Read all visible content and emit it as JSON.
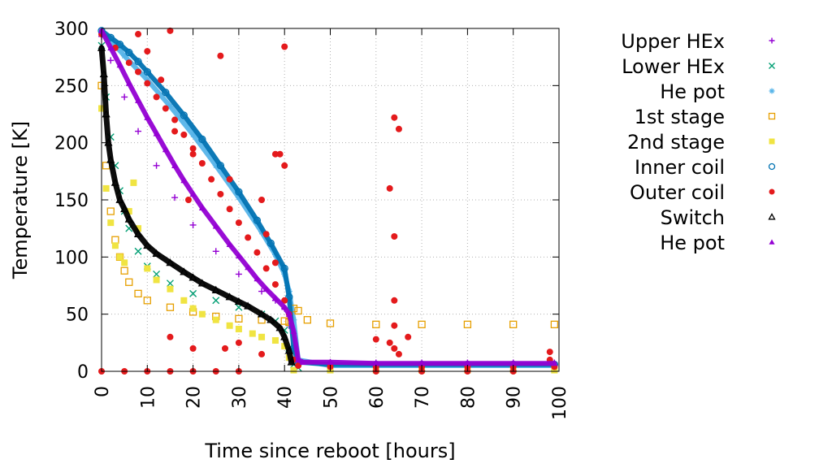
{
  "chart_data": {
    "type": "scatter",
    "title": "",
    "xlabel": "Time since reboot [hours]",
    "ylabel": "Temperature [K]",
    "xlim": [
      0,
      100
    ],
    "ylim": [
      0,
      300
    ],
    "x_ticks": [
      0,
      10,
      20,
      30,
      40,
      50,
      60,
      70,
      80,
      90,
      100
    ],
    "y_ticks": [
      0,
      50,
      100,
      150,
      200,
      250,
      300
    ],
    "grid": true,
    "legend_position": "outside-right",
    "series": [
      {
        "name": "Upper HEx",
        "marker": "plus",
        "color": "#9400d3",
        "points": [
          [
            0,
            293
          ],
          [
            2,
            272
          ],
          [
            5,
            240
          ],
          [
            8,
            210
          ],
          [
            12,
            180
          ],
          [
            16,
            152
          ],
          [
            20,
            128
          ],
          [
            25,
            105
          ],
          [
            30,
            85
          ],
          [
            35,
            70
          ],
          [
            38,
            62
          ],
          [
            40,
            55
          ],
          [
            41,
            40
          ],
          [
            42,
            20
          ],
          [
            43,
            8
          ],
          [
            50,
            8
          ],
          [
            60,
            7.5
          ],
          [
            70,
            7.5
          ],
          [
            80,
            7.5
          ],
          [
            90,
            7.5
          ],
          [
            99,
            7.5
          ]
        ]
      },
      {
        "name": "Lower HEx",
        "marker": "cross",
        "color": "#009e73",
        "points": [
          [
            0,
            285
          ],
          [
            1,
            240
          ],
          [
            2,
            205
          ],
          [
            3,
            180
          ],
          [
            4,
            158
          ],
          [
            5,
            140
          ],
          [
            6,
            125
          ],
          [
            8,
            105
          ],
          [
            10,
            92
          ],
          [
            12,
            85
          ],
          [
            15,
            77
          ],
          [
            20,
            68
          ],
          [
            25,
            62
          ],
          [
            30,
            56
          ],
          [
            35,
            50
          ],
          [
            38,
            44
          ],
          [
            40,
            36
          ],
          [
            41,
            20
          ],
          [
            42,
            6
          ],
          [
            43,
            3
          ],
          [
            50,
            3
          ],
          [
            60,
            3
          ],
          [
            70,
            3
          ],
          [
            80,
            3
          ],
          [
            90,
            3
          ],
          [
            99,
            3
          ]
        ]
      },
      {
        "name": "He pot",
        "marker": "asterisk",
        "color": "#56b4e9",
        "points": [
          [
            0,
            296
          ],
          [
            3,
            285
          ],
          [
            5,
            276
          ],
          [
            10,
            255
          ],
          [
            15,
            232
          ],
          [
            20,
            207
          ],
          [
            25,
            180
          ],
          [
            30,
            152
          ],
          [
            35,
            122
          ],
          [
            38,
            102
          ],
          [
            40,
            85
          ],
          [
            41,
            70
          ],
          [
            42,
            45
          ],
          [
            43,
            10
          ],
          [
            50,
            5
          ],
          [
            60,
            5
          ],
          [
            70,
            5
          ],
          [
            80,
            5
          ],
          [
            90,
            5
          ],
          [
            99,
            5
          ]
        ]
      },
      {
        "name": "1st stage",
        "marker": "open-square",
        "color": "#e69f00",
        "points": [
          [
            0,
            250
          ],
          [
            1,
            180
          ],
          [
            2,
            140
          ],
          [
            3,
            115
          ],
          [
            4,
            100
          ],
          [
            5,
            88
          ],
          [
            6,
            78
          ],
          [
            8,
            68
          ],
          [
            10,
            62
          ],
          [
            15,
            56
          ],
          [
            20,
            52
          ],
          [
            25,
            48
          ],
          [
            30,
            46
          ],
          [
            35,
            45
          ],
          [
            40,
            44
          ],
          [
            41,
            43
          ],
          [
            42,
            55
          ],
          [
            43,
            53
          ],
          [
            45,
            45
          ],
          [
            50,
            42
          ],
          [
            60,
            41
          ],
          [
            70,
            41
          ],
          [
            80,
            41
          ],
          [
            90,
            41
          ],
          [
            99,
            41
          ]
        ]
      },
      {
        "name": "2nd stage",
        "marker": "filled-square",
        "color": "#f0e442",
        "points": [
          [
            0,
            230
          ],
          [
            1,
            160
          ],
          [
            2,
            130
          ],
          [
            3,
            110
          ],
          [
            4,
            100
          ],
          [
            5,
            95
          ],
          [
            6,
            140
          ],
          [
            7,
            165
          ],
          [
            8,
            125
          ],
          [
            10,
            90
          ],
          [
            12,
            80
          ],
          [
            15,
            72
          ],
          [
            18,
            62
          ],
          [
            20,
            55
          ],
          [
            22,
            50
          ],
          [
            25,
            45
          ],
          [
            28,
            40
          ],
          [
            30,
            37
          ],
          [
            33,
            33
          ],
          [
            35,
            30
          ],
          [
            38,
            27
          ],
          [
            40,
            22
          ],
          [
            41,
            12
          ],
          [
            42,
            1
          ],
          [
            50,
            1
          ],
          [
            60,
            1
          ],
          [
            70,
            1
          ],
          [
            80,
            1
          ],
          [
            90,
            1
          ],
          [
            99,
            1
          ]
        ]
      },
      {
        "name": "Inner coil",
        "marker": "open-circle",
        "color": "#0072b2",
        "points": [
          [
            0,
            298
          ],
          [
            2,
            292
          ],
          [
            4,
            286
          ],
          [
            6,
            279
          ],
          [
            8,
            271
          ],
          [
            10,
            262
          ],
          [
            14,
            244
          ],
          [
            18,
            224
          ],
          [
            22,
            203
          ],
          [
            26,
            180
          ],
          [
            30,
            157
          ],
          [
            34,
            132
          ],
          [
            37,
            112
          ],
          [
            40,
            90
          ],
          [
            41,
            65
          ],
          [
            42,
            20
          ],
          [
            43,
            8
          ],
          [
            50,
            6
          ],
          [
            60,
            6
          ],
          [
            70,
            6
          ],
          [
            80,
            6
          ],
          [
            90,
            6
          ],
          [
            99,
            6
          ]
        ]
      },
      {
        "name": "Outer coil",
        "marker": "filled-circle",
        "color": "#e41a1c",
        "points": [
          [
            0,
            295
          ],
          [
            3,
            283
          ],
          [
            6,
            270
          ],
          [
            8,
            262
          ],
          [
            10,
            252
          ],
          [
            12,
            240
          ],
          [
            14,
            230
          ],
          [
            16,
            220
          ],
          [
            18,
            207
          ],
          [
            20,
            195
          ],
          [
            22,
            182
          ],
          [
            24,
            168
          ],
          [
            26,
            155
          ],
          [
            28,
            142
          ],
          [
            30,
            130
          ],
          [
            32,
            117
          ],
          [
            34,
            104
          ],
          [
            36,
            90
          ],
          [
            38,
            76
          ],
          [
            40,
            62
          ],
          [
            41,
            50
          ],
          [
            42,
            10
          ],
          [
            43,
            5
          ],
          [
            50,
            4
          ],
          [
            60,
            4
          ],
          [
            70,
            4
          ],
          [
            80,
            4
          ],
          [
            90,
            4
          ],
          [
            99,
            4
          ],
          [
            8,
            295
          ],
          [
            15,
            298
          ],
          [
            26,
            276
          ],
          [
            40,
            284
          ],
          [
            10,
            280
          ],
          [
            13,
            255
          ],
          [
            16,
            210
          ],
          [
            19,
            150
          ],
          [
            20,
            190
          ],
          [
            28,
            168
          ],
          [
            38,
            190
          ],
          [
            39,
            190
          ],
          [
            40,
            180
          ],
          [
            35,
            150
          ],
          [
            36,
            120
          ],
          [
            38,
            95
          ],
          [
            63,
            160
          ],
          [
            64,
            118
          ],
          [
            64,
            62
          ],
          [
            64,
            40
          ],
          [
            64,
            222
          ],
          [
            65,
            212
          ],
          [
            60,
            28
          ],
          [
            63,
            25
          ],
          [
            64,
            20
          ],
          [
            65,
            15
          ],
          [
            67,
            30
          ],
          [
            15,
            30
          ],
          [
            20,
            20
          ],
          [
            27,
            20
          ],
          [
            30,
            25
          ],
          [
            35,
            15
          ],
          [
            0,
            0
          ],
          [
            5,
            0
          ],
          [
            10,
            0
          ],
          [
            15,
            0
          ],
          [
            20,
            0
          ],
          [
            25,
            0
          ],
          [
            30,
            0
          ],
          [
            60,
            0
          ],
          [
            70,
            0
          ],
          [
            80,
            0
          ],
          [
            90,
            0
          ],
          [
            98,
            17
          ],
          [
            98,
            10
          ]
        ]
      },
      {
        "name": "Switch",
        "marker": "open-triangle",
        "color": "#000000",
        "points": [
          [
            0,
            283
          ],
          [
            0.5,
            260
          ],
          [
            1,
            225
          ],
          [
            1.5,
            200
          ],
          [
            2,
            185
          ],
          [
            3,
            165
          ],
          [
            4,
            150
          ],
          [
            5,
            142
          ],
          [
            6,
            133
          ],
          [
            8,
            120
          ],
          [
            10,
            110
          ],
          [
            12,
            103
          ],
          [
            15,
            95
          ],
          [
            18,
            87
          ],
          [
            20,
            82
          ],
          [
            22,
            77
          ],
          [
            25,
            71
          ],
          [
            28,
            65
          ],
          [
            30,
            61
          ],
          [
            32,
            57
          ],
          [
            35,
            50
          ],
          [
            37,
            45
          ],
          [
            39,
            38
          ],
          [
            40,
            30
          ],
          [
            41,
            18
          ],
          [
            41.5,
            8
          ]
        ]
      },
      {
        "name": "He pot",
        "marker": "filled-triangle",
        "color": "#9400d3",
        "points": [
          [
            0,
            298
          ],
          [
            2,
            283
          ],
          [
            4,
            268
          ],
          [
            6,
            252
          ],
          [
            8,
            237
          ],
          [
            10,
            222
          ],
          [
            12,
            208
          ],
          [
            14,
            194
          ],
          [
            16,
            180
          ],
          [
            18,
            167
          ],
          [
            20,
            155
          ],
          [
            22,
            143
          ],
          [
            25,
            127
          ],
          [
            28,
            111
          ],
          [
            30,
            101
          ],
          [
            32,
            91
          ],
          [
            34,
            81
          ],
          [
            36,
            72
          ],
          [
            38,
            64
          ],
          [
            40,
            56
          ],
          [
            41,
            50
          ],
          [
            42,
            35
          ],
          [
            43,
            10
          ],
          [
            44,
            8
          ],
          [
            50,
            8
          ],
          [
            60,
            7
          ],
          [
            70,
            7
          ],
          [
            80,
            7
          ],
          [
            90,
            7
          ],
          [
            99,
            7
          ]
        ]
      }
    ]
  }
}
